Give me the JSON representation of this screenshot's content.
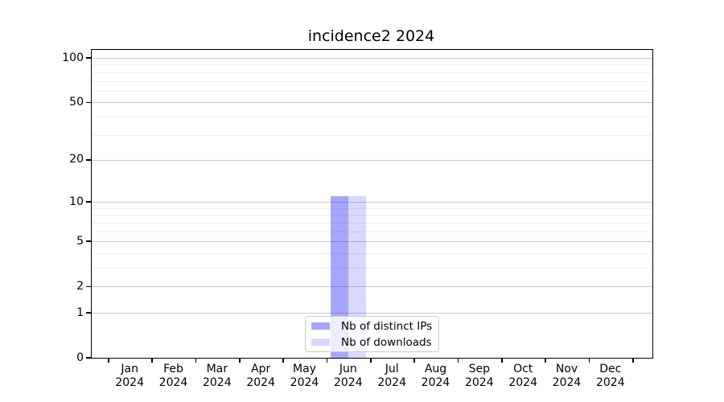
{
  "title": "incidence2 2024",
  "chart_data": {
    "type": "bar",
    "title": "incidence2 2024",
    "xlabel": "",
    "ylabel": "",
    "categories": [
      "Jan",
      "Feb",
      "Mar",
      "Apr",
      "May",
      "Jun",
      "Jul",
      "Aug",
      "Sep",
      "Oct",
      "Nov",
      "Dec"
    ],
    "category_year": "2024",
    "series": [
      {
        "name": "Nb of distinct IPs",
        "color": "rgba(0,0,255,0.35)",
        "values": [
          0,
          0,
          0,
          0,
          0,
          11,
          0,
          0,
          0,
          0,
          0,
          0
        ]
      },
      {
        "name": "Nb of downloads",
        "color": "rgba(0,0,255,0.15)",
        "values": [
          0,
          0,
          0,
          0,
          0,
          11,
          0,
          0,
          0,
          0,
          0,
          0
        ]
      }
    ],
    "yscale": "log1p",
    "ylim": [
      0,
      113.3
    ],
    "yticks": [
      0,
      1,
      2,
      5,
      10,
      20,
      50,
      100
    ],
    "yticks_minor": [
      3,
      4,
      6,
      7,
      8,
      9,
      30,
      40,
      60,
      70,
      80,
      90
    ],
    "grid": true,
    "legend_position": "lower center",
    "colors": {
      "major_grid": "#c9c9c9",
      "minor_grid": "#ededed",
      "axis": "#000000",
      "background": "#ffffff"
    }
  }
}
